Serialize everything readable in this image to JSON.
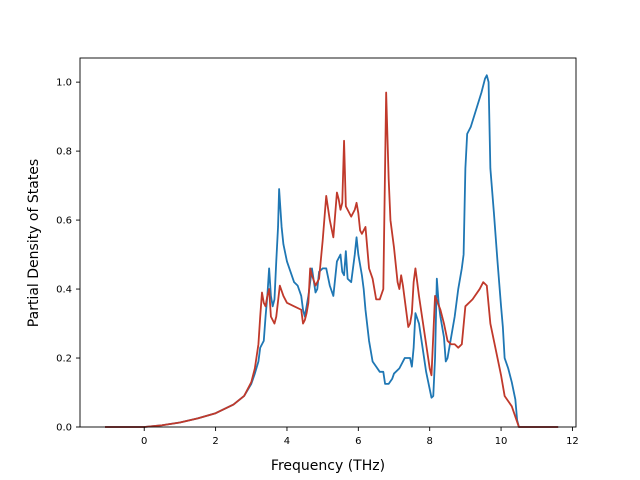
{
  "chart_data": {
    "type": "line",
    "title": "",
    "xlabel": "Frequency (THz)",
    "ylabel": "Partial Density of States",
    "xlim": [
      -1.8,
      12.1
    ],
    "ylim": [
      0.0,
      1.07
    ],
    "xticks": [
      0,
      2,
      4,
      6,
      8,
      10,
      12
    ],
    "yticks": [
      0.0,
      0.2,
      0.4,
      0.6,
      0.8,
      1.0
    ],
    "ytick_labels": [
      "0.0",
      "0.2",
      "0.4",
      "0.6",
      "0.8",
      "1.0"
    ],
    "grid": false,
    "legend": "none",
    "series": [
      {
        "color": "#1f77b4",
        "points": [
          [
            -1.1,
            0.0
          ],
          [
            -0.5,
            0.0
          ],
          [
            0.0,
            0.0
          ],
          [
            0.5,
            0.005
          ],
          [
            1.0,
            0.013
          ],
          [
            1.5,
            0.025
          ],
          [
            2.0,
            0.04
          ],
          [
            2.5,
            0.065
          ],
          [
            2.8,
            0.09
          ],
          [
            3.0,
            0.125
          ],
          [
            3.1,
            0.155
          ],
          [
            3.2,
            0.19
          ],
          [
            3.25,
            0.23
          ],
          [
            3.3,
            0.24
          ],
          [
            3.35,
            0.25
          ],
          [
            3.4,
            0.32
          ],
          [
            3.45,
            0.38
          ],
          [
            3.5,
            0.46
          ],
          [
            3.55,
            0.38
          ],
          [
            3.6,
            0.35
          ],
          [
            3.65,
            0.37
          ],
          [
            3.7,
            0.48
          ],
          [
            3.75,
            0.58
          ],
          [
            3.78,
            0.69
          ],
          [
            3.85,
            0.58
          ],
          [
            3.9,
            0.53
          ],
          [
            4.0,
            0.48
          ],
          [
            4.1,
            0.45
          ],
          [
            4.2,
            0.42
          ],
          [
            4.3,
            0.41
          ],
          [
            4.4,
            0.38
          ],
          [
            4.45,
            0.34
          ],
          [
            4.5,
            0.32
          ],
          [
            4.6,
            0.38
          ],
          [
            4.7,
            0.46
          ],
          [
            4.8,
            0.39
          ],
          [
            4.85,
            0.4
          ],
          [
            4.9,
            0.45
          ],
          [
            5.0,
            0.46
          ],
          [
            5.1,
            0.46
          ],
          [
            5.2,
            0.41
          ],
          [
            5.3,
            0.38
          ],
          [
            5.4,
            0.48
          ],
          [
            5.5,
            0.5
          ],
          [
            5.55,
            0.45
          ],
          [
            5.6,
            0.44
          ],
          [
            5.65,
            0.51
          ],
          [
            5.7,
            0.43
          ],
          [
            5.8,
            0.42
          ],
          [
            5.9,
            0.5
          ],
          [
            5.95,
            0.55
          ],
          [
            6.0,
            0.5
          ],
          [
            6.1,
            0.44
          ],
          [
            6.15,
            0.4
          ],
          [
            6.2,
            0.34
          ],
          [
            6.3,
            0.25
          ],
          [
            6.4,
            0.19
          ],
          [
            6.5,
            0.175
          ],
          [
            6.6,
            0.16
          ],
          [
            6.7,
            0.16
          ],
          [
            6.75,
            0.125
          ],
          [
            6.85,
            0.125
          ],
          [
            6.95,
            0.14
          ],
          [
            7.0,
            0.155
          ],
          [
            7.15,
            0.17
          ],
          [
            7.3,
            0.2
          ],
          [
            7.45,
            0.2
          ],
          [
            7.5,
            0.175
          ],
          [
            7.55,
            0.23
          ],
          [
            7.6,
            0.33
          ],
          [
            7.7,
            0.3
          ],
          [
            7.8,
            0.23
          ],
          [
            7.9,
            0.16
          ],
          [
            8.0,
            0.11
          ],
          [
            8.05,
            0.085
          ],
          [
            8.1,
            0.09
          ],
          [
            8.15,
            0.2
          ],
          [
            8.2,
            0.43
          ],
          [
            8.25,
            0.36
          ],
          [
            8.3,
            0.32
          ],
          [
            8.4,
            0.26
          ],
          [
            8.45,
            0.19
          ],
          [
            8.5,
            0.2
          ],
          [
            8.6,
            0.26
          ],
          [
            8.7,
            0.32
          ],
          [
            8.8,
            0.4
          ],
          [
            8.9,
            0.46
          ],
          [
            8.95,
            0.5
          ],
          [
            9.0,
            0.75
          ],
          [
            9.05,
            0.85
          ],
          [
            9.15,
            0.87
          ],
          [
            9.3,
            0.92
          ],
          [
            9.45,
            0.97
          ],
          [
            9.55,
            1.01
          ],
          [
            9.6,
            1.02
          ],
          [
            9.65,
            1.0
          ],
          [
            9.7,
            0.75
          ],
          [
            9.8,
            0.62
          ],
          [
            9.9,
            0.48
          ],
          [
            10.0,
            0.35
          ],
          [
            10.05,
            0.29
          ],
          [
            10.1,
            0.2
          ],
          [
            10.2,
            0.17
          ],
          [
            10.3,
            0.13
          ],
          [
            10.4,
            0.08
          ],
          [
            10.45,
            0.02
          ],
          [
            10.5,
            0.0
          ],
          [
            11.0,
            0.0
          ],
          [
            11.6,
            0.0
          ]
        ]
      },
      {
        "color": "#c0392b",
        "points": [
          [
            -1.1,
            0.0
          ],
          [
            -0.5,
            0.0
          ],
          [
            0.0,
            0.0
          ],
          [
            0.5,
            0.005
          ],
          [
            1.0,
            0.013
          ],
          [
            1.5,
            0.025
          ],
          [
            2.0,
            0.04
          ],
          [
            2.5,
            0.065
          ],
          [
            2.8,
            0.09
          ],
          [
            3.0,
            0.13
          ],
          [
            3.1,
            0.17
          ],
          [
            3.2,
            0.24
          ],
          [
            3.25,
            0.32
          ],
          [
            3.3,
            0.39
          ],
          [
            3.35,
            0.36
          ],
          [
            3.4,
            0.35
          ],
          [
            3.45,
            0.38
          ],
          [
            3.5,
            0.4
          ],
          [
            3.55,
            0.32
          ],
          [
            3.65,
            0.3
          ],
          [
            3.7,
            0.32
          ],
          [
            3.8,
            0.41
          ],
          [
            3.9,
            0.38
          ],
          [
            4.0,
            0.36
          ],
          [
            4.2,
            0.35
          ],
          [
            4.4,
            0.34
          ],
          [
            4.45,
            0.3
          ],
          [
            4.5,
            0.31
          ],
          [
            4.55,
            0.33
          ],
          [
            4.6,
            0.36
          ],
          [
            4.65,
            0.46
          ],
          [
            4.7,
            0.44
          ],
          [
            4.8,
            0.41
          ],
          [
            4.9,
            0.43
          ],
          [
            5.0,
            0.54
          ],
          [
            5.1,
            0.67
          ],
          [
            5.2,
            0.6
          ],
          [
            5.3,
            0.55
          ],
          [
            5.4,
            0.68
          ],
          [
            5.45,
            0.66
          ],
          [
            5.5,
            0.63
          ],
          [
            5.55,
            0.65
          ],
          [
            5.6,
            0.83
          ],
          [
            5.65,
            0.64
          ],
          [
            5.7,
            0.63
          ],
          [
            5.8,
            0.61
          ],
          [
            5.9,
            0.63
          ],
          [
            5.95,
            0.65
          ],
          [
            6.0,
            0.62
          ],
          [
            6.05,
            0.57
          ],
          [
            6.1,
            0.56
          ],
          [
            6.15,
            0.57
          ],
          [
            6.2,
            0.58
          ],
          [
            6.25,
            0.52
          ],
          [
            6.3,
            0.46
          ],
          [
            6.4,
            0.43
          ],
          [
            6.5,
            0.37
          ],
          [
            6.6,
            0.37
          ],
          [
            6.7,
            0.4
          ],
          [
            6.78,
            0.97
          ],
          [
            6.85,
            0.72
          ],
          [
            6.9,
            0.6
          ],
          [
            7.0,
            0.52
          ],
          [
            7.1,
            0.42
          ],
          [
            7.15,
            0.4
          ],
          [
            7.2,
            0.44
          ],
          [
            7.25,
            0.41
          ],
          [
            7.3,
            0.37
          ],
          [
            7.4,
            0.29
          ],
          [
            7.45,
            0.3
          ],
          [
            7.5,
            0.33
          ],
          [
            7.55,
            0.42
          ],
          [
            7.6,
            0.46
          ],
          [
            7.65,
            0.42
          ],
          [
            7.7,
            0.38
          ],
          [
            7.8,
            0.31
          ],
          [
            7.9,
            0.24
          ],
          [
            8.0,
            0.17
          ],
          [
            8.05,
            0.15
          ],
          [
            8.15,
            0.38
          ],
          [
            8.3,
            0.34
          ],
          [
            8.4,
            0.3
          ],
          [
            8.5,
            0.25
          ],
          [
            8.6,
            0.24
          ],
          [
            8.7,
            0.24
          ],
          [
            8.8,
            0.23
          ],
          [
            8.9,
            0.24
          ],
          [
            9.0,
            0.35
          ],
          [
            9.2,
            0.37
          ],
          [
            9.4,
            0.4
          ],
          [
            9.5,
            0.42
          ],
          [
            9.6,
            0.41
          ],
          [
            9.7,
            0.3
          ],
          [
            9.8,
            0.25
          ],
          [
            9.9,
            0.2
          ],
          [
            10.0,
            0.15
          ],
          [
            10.1,
            0.09
          ],
          [
            10.2,
            0.075
          ],
          [
            10.3,
            0.06
          ],
          [
            10.4,
            0.03
          ],
          [
            10.5,
            0.0
          ],
          [
            11.0,
            0.0
          ],
          [
            11.6,
            0.0
          ]
        ]
      }
    ]
  }
}
